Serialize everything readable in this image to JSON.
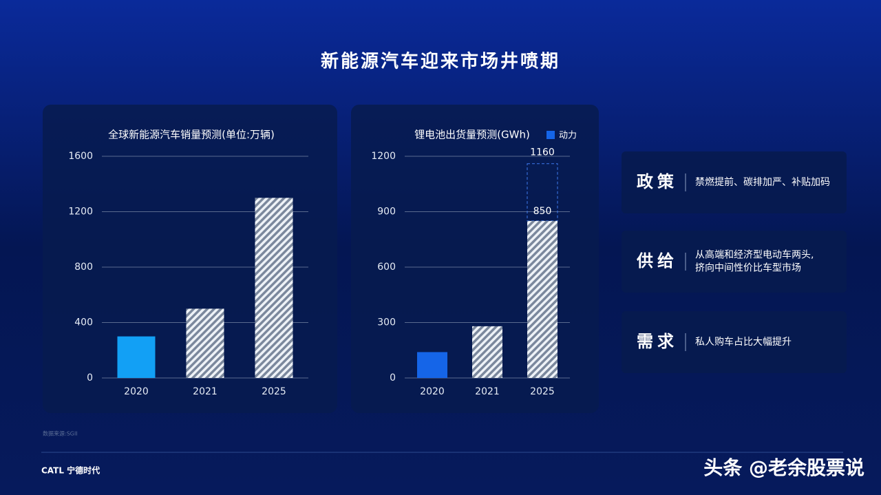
{
  "title": "新能源汽车迎来市场井喷期",
  "chart_data": [
    {
      "type": "bar",
      "title": "全球新能源汽车销量预测(单位:万辆)",
      "categories": [
        "2020",
        "2021",
        "2025"
      ],
      "values": [
        300,
        500,
        1300
      ],
      "color": "#12a0f5",
      "hatched": [
        false,
        true,
        true
      ],
      "ylim": [
        0,
        1600
      ],
      "yticks": [
        0,
        400,
        800,
        1200,
        1600
      ],
      "grid": true
    },
    {
      "type": "bar",
      "title": "锂电池出货量预测(GWh)",
      "categories": [
        "2020",
        "2021",
        "2025"
      ],
      "series": [
        {
          "name": "动力",
          "color": "#1565e8",
          "values": [
            140,
            280,
            850
          ]
        }
      ],
      "hatched": [
        false,
        true,
        true
      ],
      "labeled": [
        false,
        false,
        true
      ],
      "dashed_values": [
        null,
        null,
        1160
      ],
      "ylim": [
        0,
        1200
      ],
      "yticks": [
        0,
        300,
        600,
        900,
        1200
      ],
      "grid": true
    }
  ],
  "drivers": [
    {
      "label": "政策",
      "lines": [
        "禁燃提前、碳排加严、补贴加码"
      ]
    },
    {
      "label": "供给",
      "lines": [
        "从高端和经济型电动车两头,",
        "挤向中间性价比车型市场"
      ]
    },
    {
      "label": "需求",
      "lines": [
        "私人购车占比大幅提升"
      ]
    }
  ],
  "source": "数据来源:SGII",
  "logo": "CATL 宁德时代",
  "watermark": "头条 @老余股票说"
}
